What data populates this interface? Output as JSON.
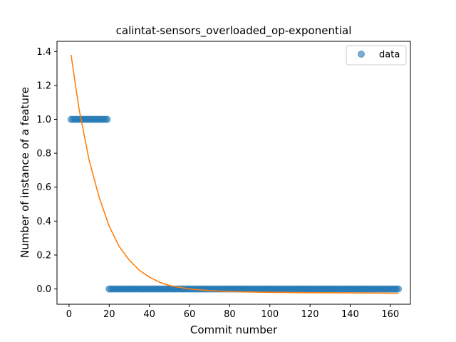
{
  "chart_data": {
    "type": "scatter",
    "title": "calintat-sensors_overloaded_op-exponential",
    "xlabel": "Commit number",
    "ylabel": "Number of instance of a feature",
    "xlim": [
      -6,
      170
    ],
    "ylim": [
      -0.09,
      1.46
    ],
    "xticks": [
      0,
      20,
      40,
      60,
      80,
      100,
      120,
      140,
      160
    ],
    "yticks": [
      0.0,
      0.2,
      0.4,
      0.6,
      0.8,
      1.0,
      1.2,
      1.4
    ],
    "xtick_labels": [
      "0",
      "20",
      "40",
      "60",
      "80",
      "100",
      "120",
      "140",
      "160"
    ],
    "ytick_labels": [
      "0.0",
      "0.2",
      "0.4",
      "0.6",
      "0.8",
      "1.0",
      "1.2",
      "1.4"
    ],
    "grid": false,
    "legend": {
      "position": "top-right",
      "entries": [
        "data"
      ]
    },
    "series": [
      {
        "name": "data",
        "kind": "points",
        "color": "#1f77b4",
        "segments": [
          {
            "x_start": 1,
            "x_end": 19,
            "y": 1.0
          },
          {
            "x_start": 20,
            "x_end": 164,
            "y": 0.0
          }
        ]
      },
      {
        "kind": "fit-line",
        "color": "#ff7f0e",
        "x": [
          1,
          5,
          10,
          15,
          20,
          25,
          30,
          35,
          40,
          45,
          50,
          55,
          60,
          70,
          80,
          90,
          100,
          120,
          140,
          164
        ],
        "y": [
          1.38,
          1.06,
          0.76,
          0.54,
          0.37,
          0.25,
          0.17,
          0.11,
          0.07,
          0.04,
          0.02,
          0.01,
          0.0,
          -0.01,
          -0.015,
          -0.018,
          -0.02,
          -0.022,
          -0.023,
          -0.025
        ]
      }
    ]
  }
}
